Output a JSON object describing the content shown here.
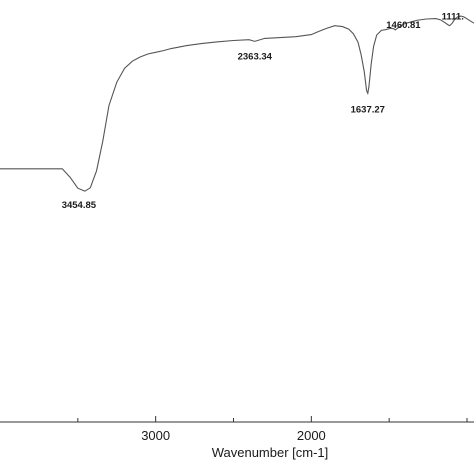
{
  "chart_data": {
    "type": "line",
    "xlabel": "Wavenumber [cm-1]",
    "ylabel": "",
    "x_reversed": true,
    "xlim": [
      4000,
      955
    ],
    "ylim": [
      0,
      100
    ],
    "xticks": [
      {
        "value": 3000,
        "label": "3000"
      },
      {
        "value": 2000,
        "label": "2000"
      }
    ],
    "grid": false,
    "series": [
      {
        "x": [
          4000,
          3800,
          3700,
          3600,
          3550,
          3500,
          3454.85,
          3420,
          3380,
          3340,
          3300,
          3250,
          3200,
          3150,
          3100,
          3050,
          3000,
          2950,
          2900,
          2800,
          2700,
          2600,
          2500,
          2400,
          2363.34,
          2300,
          2200,
          2100,
          2000,
          1950,
          1900,
          1850,
          1800,
          1760,
          1730,
          1700,
          1680,
          1660,
          1645,
          1637.27,
          1630,
          1615,
          1600,
          1580,
          1550,
          1520,
          1490,
          1470,
          1460.81,
          1440,
          1420,
          1400,
          1360,
          1320,
          1260,
          1200,
          1170,
          1140,
          1125,
          1111.41,
          1095,
          1080,
          1060,
          1040,
          1020,
          990,
          955
        ],
        "y": [
          60.0,
          60.0,
          60.0,
          60.0,
          58.0,
          55.4,
          54.7,
          55.5,
          59.5,
          66.5,
          75.0,
          80.5,
          83.8,
          85.5,
          86.5,
          87.2,
          87.6,
          88.0,
          88.5,
          89.2,
          89.7,
          90.1,
          90.4,
          90.6,
          90.2,
          90.9,
          91.1,
          91.3,
          91.8,
          92.6,
          93.3,
          93.9,
          93.7,
          93.1,
          92.0,
          90.0,
          87.0,
          83.0,
          78.5,
          77.9,
          79.5,
          85.0,
          89.0,
          91.7,
          92.8,
          93.0,
          93.3,
          93.2,
          92.9,
          93.5,
          94.0,
          94.4,
          94.8,
          95.2,
          95.5,
          95.6,
          95.3,
          94.6,
          94.2,
          93.9,
          94.5,
          95.4,
          96.0,
          96.2,
          96.0,
          95.3,
          94.5
        ]
      }
    ],
    "annotations": [
      {
        "x": 3454.85,
        "label": "3454.85"
      },
      {
        "x": 2363.34,
        "label": "2363.34"
      },
      {
        "x": 1637.27,
        "label": "1637.27"
      },
      {
        "x": 1460.81,
        "label": "1460.81"
      },
      {
        "x": 1111.41,
        "label": "1111."
      }
    ]
  }
}
